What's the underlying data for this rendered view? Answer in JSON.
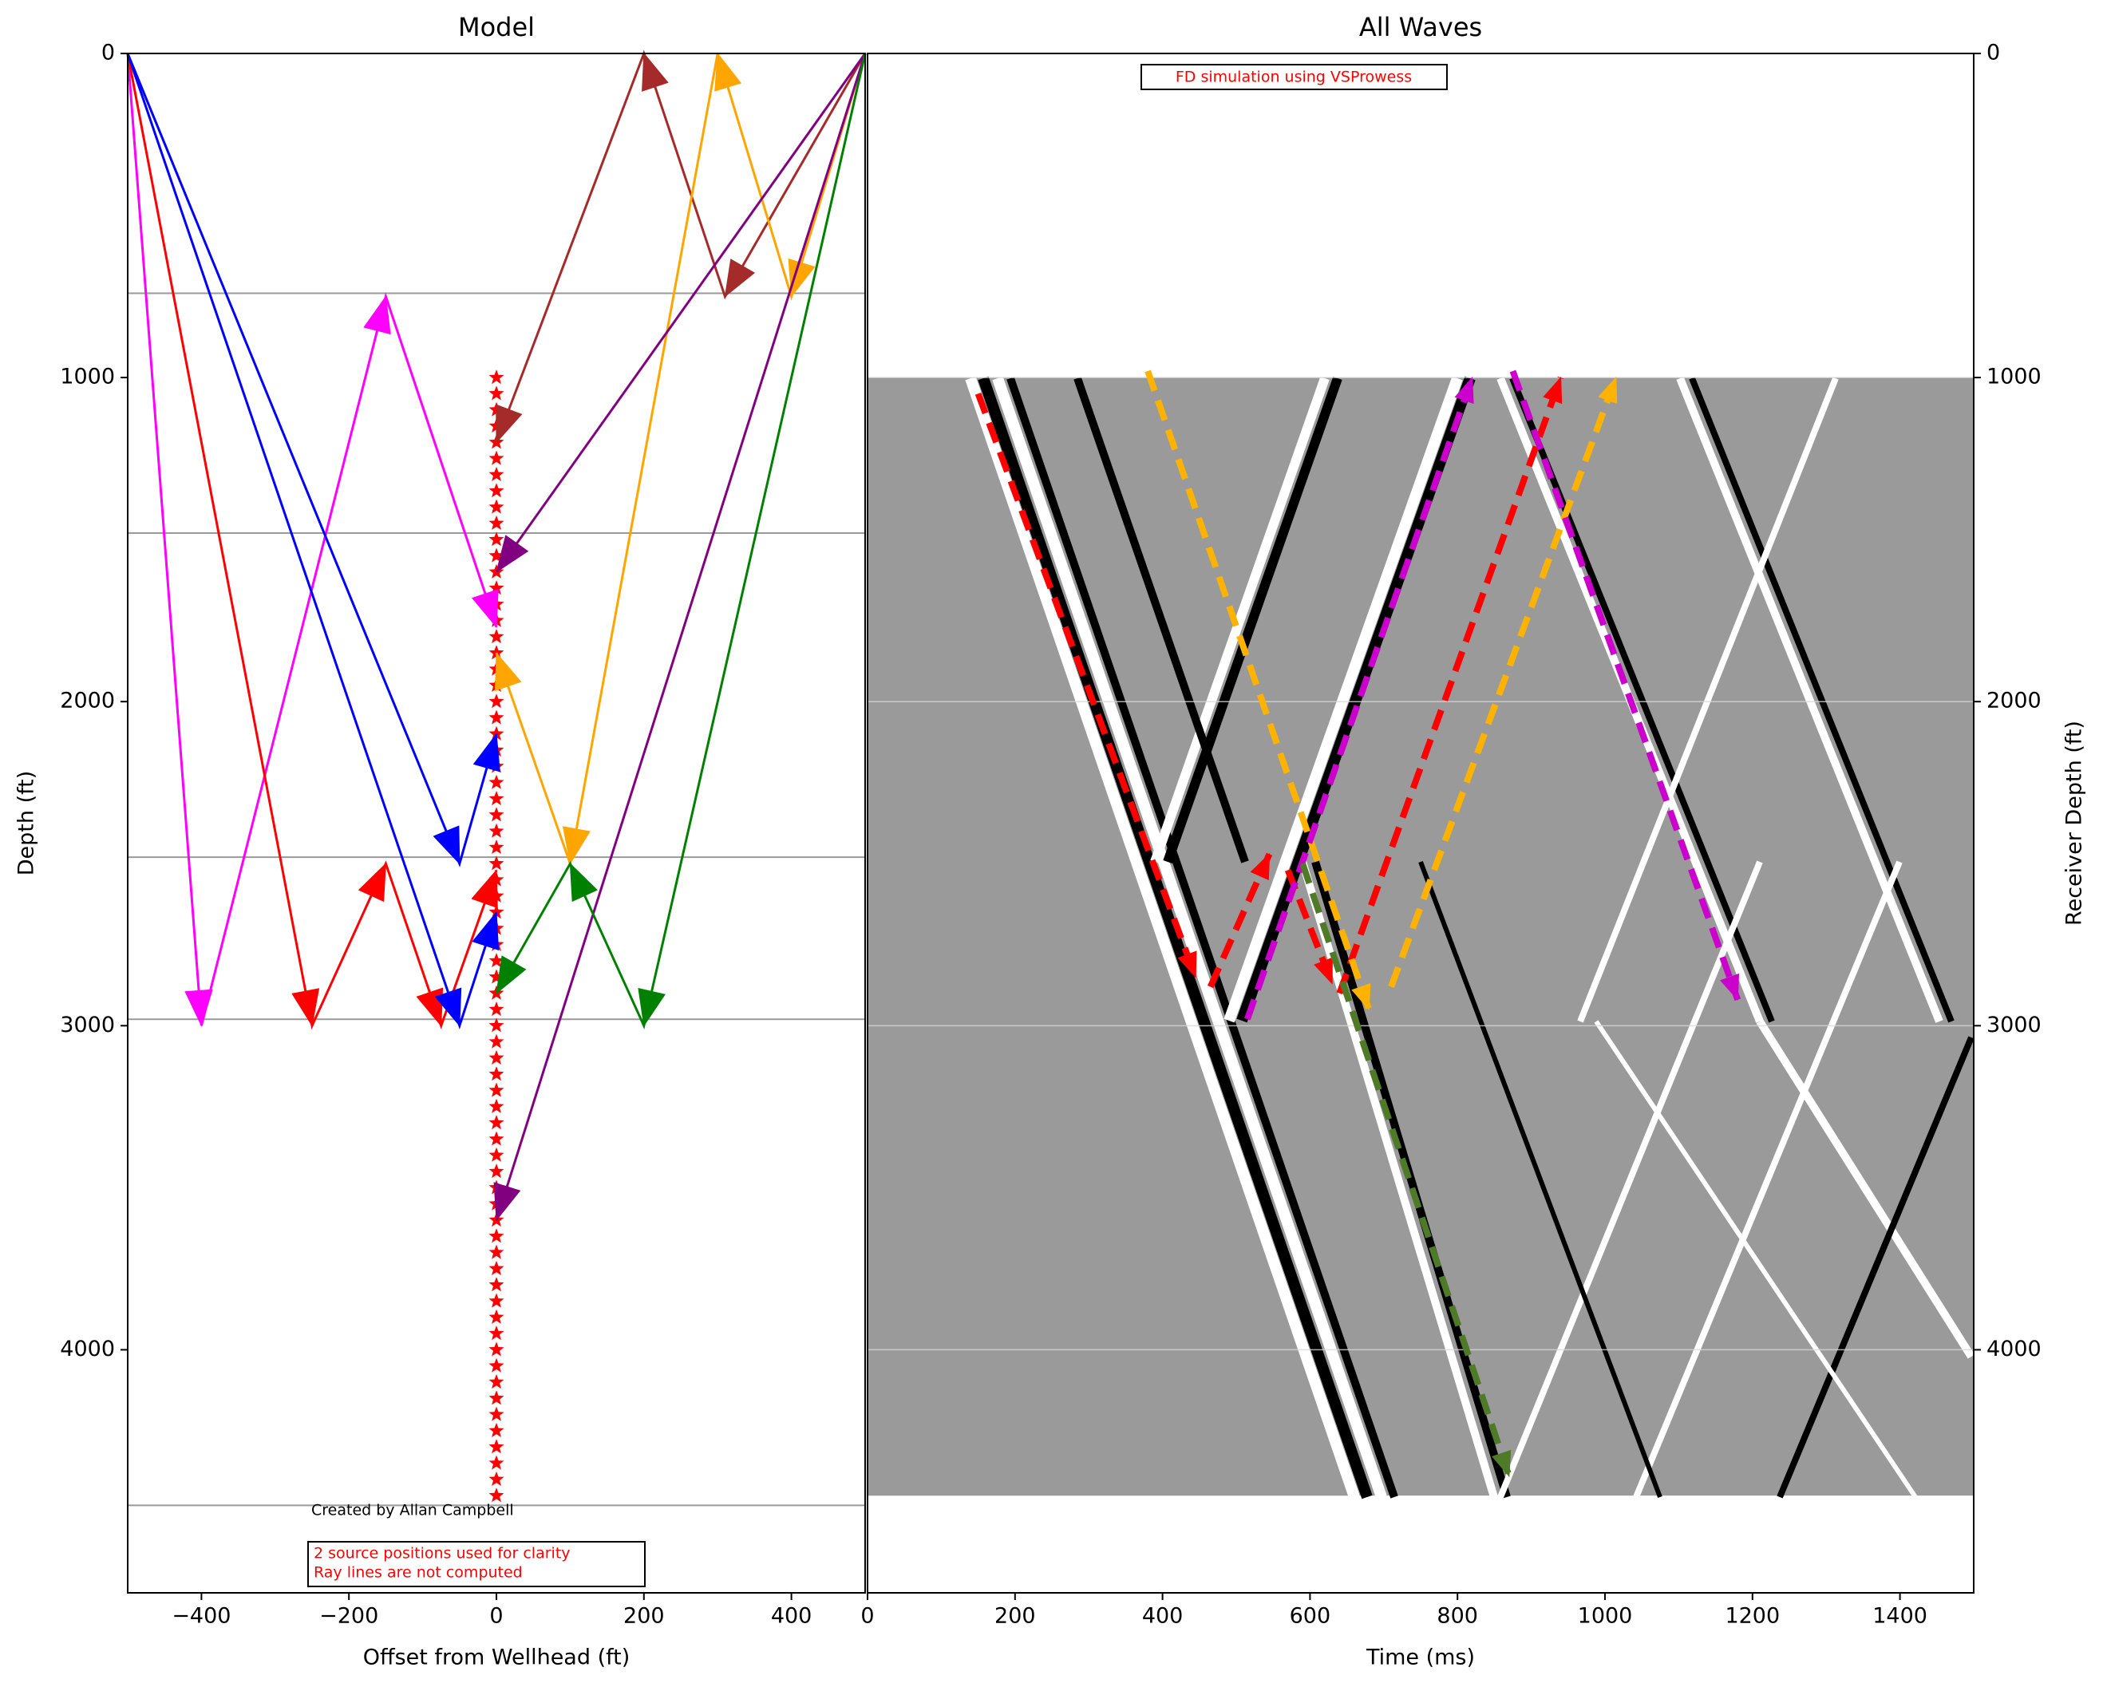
{
  "chart_data": [
    {
      "type": "ray",
      "title": "Model",
      "xlabel": "Offset from Wellhead (ft)",
      "ylabel": "Depth (ft)",
      "xlim": [
        -500,
        500
      ],
      "ylim": [
        0,
        4750
      ],
      "y_inverted": true,
      "xticks": [
        {
          "value": -400,
          "label": "−400"
        },
        {
          "value": -200,
          "label": "−200"
        },
        0,
        200,
        400
      ],
      "yticks": [
        0,
        1000,
        2000,
        3000,
        4000
      ],
      "layers": [
        740,
        1480,
        2480,
        2980,
        4480
      ],
      "layer_color": "#999999",
      "receiver_offset": 0,
      "receiver_color": "#ff0000",
      "receiver_depths": [
        1000,
        1050,
        1100,
        1150,
        1200,
        1250,
        1300,
        1350,
        1400,
        1450,
        1500,
        1550,
        1600,
        1650,
        1700,
        1750,
        1800,
        1850,
        1900,
        1950,
        2000,
        2050,
        2100,
        2150,
        2200,
        2250,
        2300,
        2350,
        2400,
        2450,
        2500,
        2550,
        2600,
        2650,
        2700,
        2750,
        2800,
        2850,
        2900,
        2950,
        3000,
        3050,
        3100,
        3150,
        3200,
        3250,
        3300,
        3350,
        3400,
        3450,
        3500,
        3550,
        3600,
        3650,
        3700,
        3750,
        3800,
        3850,
        3900,
        3950,
        4000,
        4050,
        4100,
        4150,
        4200,
        4250,
        4300,
        4350,
        4400,
        4450
      ],
      "credit": "Created by Allan Campbell",
      "note": [
        "2 source positions used for clarity",
        "Ray lines are not computed"
      ],
      "series": [
        {
          "color": "#ff00ff",
          "x": [
            -500,
            -400,
            -150,
            0
          ],
          "y": [
            0,
            3000,
            750,
            1770
          ]
        },
        {
          "color": "#ff0000",
          "x": [
            -500,
            -250,
            -150,
            -75,
            0
          ],
          "y": [
            0,
            3000,
            2500,
            3000,
            2520
          ]
        },
        {
          "color": "#0000ff",
          "x": [
            -500,
            -50,
            0
          ],
          "y": [
            0,
            2500,
            2100
          ]
        },
        {
          "color": "#0000ff",
          "x": [
            -500,
            -50,
            0
          ],
          "y": [
            0,
            3000,
            2650
          ]
        },
        {
          "color": "#a52a2a",
          "x": [
            500,
            310,
            200,
            0
          ],
          "y": [
            0,
            750,
            0,
            1200
          ]
        },
        {
          "color": "#ffa500",
          "x": [
            500,
            400,
            300,
            100,
            0
          ],
          "y": [
            0,
            750,
            0,
            2500,
            1850
          ]
        },
        {
          "color": "#800080",
          "x": [
            500,
            0
          ],
          "y": [
            0,
            1600
          ]
        },
        {
          "color": "#800080",
          "x": [
            500,
            0
          ],
          "y": [
            0,
            3600
          ]
        },
        {
          "color": "#008000",
          "x": [
            500,
            200,
            100,
            0
          ],
          "y": [
            0,
            3000,
            2500,
            2900
          ]
        }
      ]
    },
    {
      "type": "ray",
      "title": "All Waves",
      "xlabel": "Time (ms)",
      "ylabel": "Receiver Depth (ft)",
      "xlim": [
        0,
        1500
      ],
      "ylim": [
        0,
        4750
      ],
      "y_inverted": true,
      "y_axis_side": "right",
      "xticks": [
        0,
        200,
        400,
        600,
        800,
        1000,
        1200,
        1400
      ],
      "yticks": [
        0,
        1000,
        2000,
        3000,
        4000
      ],
      "grid": true,
      "section_depth": [
        1000,
        4450
      ],
      "section_color": "#9a9a9a",
      "annotation": "FD simulation using VSProwess",
      "dashed": true,
      "series": [
        {
          "color": "#ff0000",
          "x": [
            150,
            445
          ],
          "y": [
            1050,
            2850
          ]
        },
        {
          "color": "#ff0000",
          "x": [
            465,
            545
          ],
          "y": [
            2880,
            2470
          ]
        },
        {
          "color": "#ff0000",
          "x": [
            570,
            630
          ],
          "y": [
            2520,
            2870
          ]
        },
        {
          "color": "#ff0000",
          "x": [
            640,
            940
          ],
          "y": [
            2900,
            1000
          ]
        },
        {
          "color": "#ffb300",
          "x": [
            380,
            680
          ],
          "y": [
            980,
            2950
          ]
        },
        {
          "color": "#ffb300",
          "x": [
            710,
            1015
          ],
          "y": [
            2880,
            1000
          ]
        },
        {
          "color": "#cc00cc",
          "x": [
            515,
            820
          ],
          "y": [
            2980,
            1000
          ]
        },
        {
          "color": "#cc00cc",
          "x": [
            875,
            1180
          ],
          "y": [
            980,
            2920
          ]
        },
        {
          "color": "#4f7a28",
          "x": [
            590,
            870
          ],
          "y": [
            2500,
            4390
          ]
        }
      ]
    }
  ]
}
